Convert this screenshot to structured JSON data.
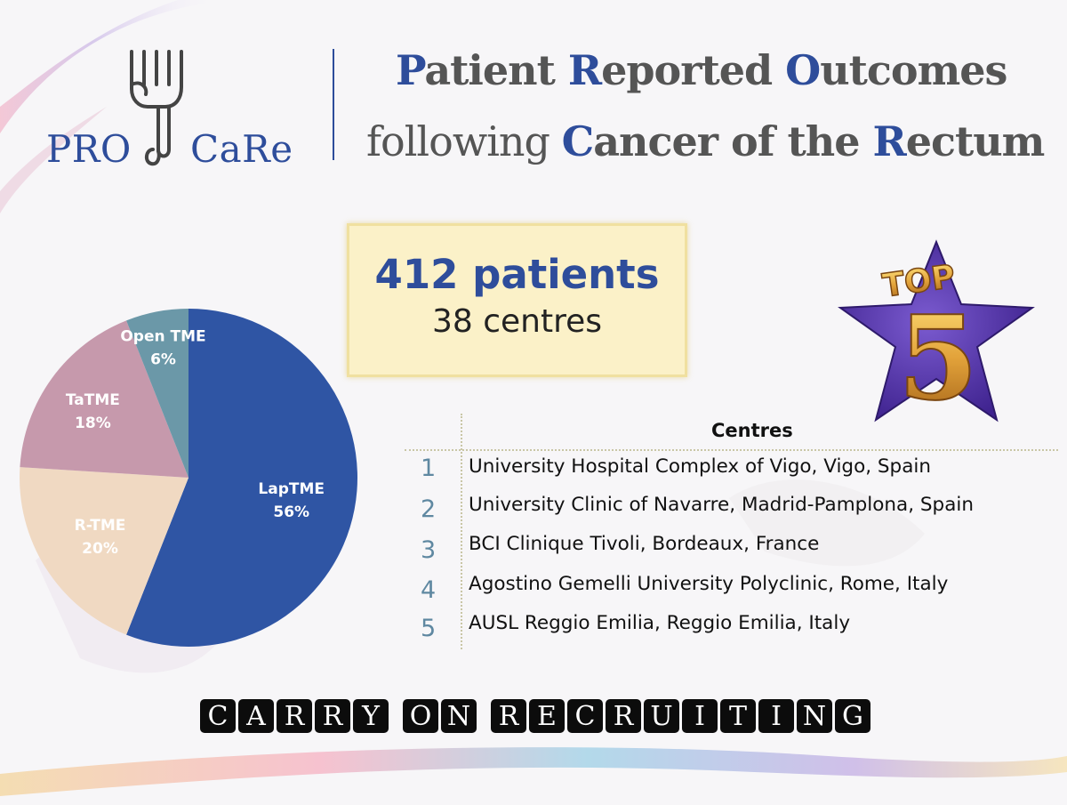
{
  "logo": {
    "left_word": "PRO",
    "right_word": "CaRe"
  },
  "title": {
    "line1": [
      {
        "text": "P",
        "hl": true
      },
      {
        "text": "atient ",
        "hl": false
      },
      {
        "text": "R",
        "hl": true
      },
      {
        "text": "eported ",
        "hl": false
      },
      {
        "text": "O",
        "hl": true
      },
      {
        "text": "utcomes",
        "hl": false
      }
    ],
    "line2": [
      {
        "text": "following ",
        "hl": false,
        "bold": false
      },
      {
        "text": "C",
        "hl": true,
        "bold": true
      },
      {
        "text": "ancer of the ",
        "hl": false,
        "bold": true
      },
      {
        "text": "R",
        "hl": true,
        "bold": true
      },
      {
        "text": "ectum",
        "hl": false,
        "bold": true
      }
    ]
  },
  "stats": {
    "patients": "412 patients",
    "centres": "38 centres"
  },
  "badge": {
    "top": "TOP",
    "number": "5"
  },
  "chart_data": {
    "type": "pie",
    "slices": [
      {
        "label": "LapTME",
        "value": 56,
        "value_label": "56%",
        "color": "#2f55a4"
      },
      {
        "label": "R-TME",
        "value": 20,
        "value_label": "20%",
        "color": "#f0d9c2"
      },
      {
        "label": "TaTME",
        "value": 18,
        "value_label": "18%",
        "color": "#c699ac"
      },
      {
        "label": "Open TME",
        "value": 6,
        "value_label": "6%",
        "color": "#6b98a8"
      }
    ]
  },
  "table": {
    "header": "Centres",
    "rows": [
      {
        "rank": "1",
        "name": "University Hospital Complex of Vigo, Vigo, Spain"
      },
      {
        "rank": "2",
        "name": "University Clinic of Navarre, Madrid-Pamplona, Spain"
      },
      {
        "rank": "3",
        "name": "BCI Clinique Tivoli, Bordeaux, France"
      },
      {
        "rank": "4",
        "name": "Agostino Gemelli University Polyclinic, Rome, Italy"
      },
      {
        "rank": "5",
        "name": "AUSL Reggio Emilia, Reggio Emilia, Italy"
      }
    ]
  },
  "banner": {
    "words": [
      "CARRY",
      "ON",
      "RECRUITING"
    ]
  }
}
